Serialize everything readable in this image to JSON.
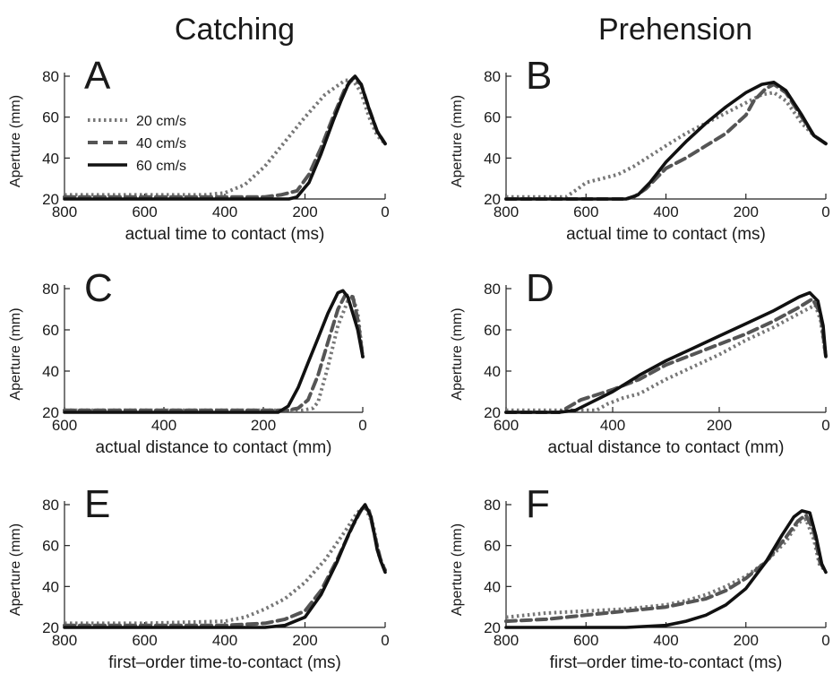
{
  "columns": [
    "Catching",
    "Prehension"
  ],
  "chart_data": [
    {
      "panel": "A",
      "type": "line",
      "xlabel": "actual time to contact (ms)",
      "ylabel": "Aperture (mm)",
      "xlim": [
        800,
        0
      ],
      "ylim": [
        20,
        80
      ],
      "xticks": [
        800,
        600,
        400,
        200,
        0
      ],
      "yticks": [
        20,
        40,
        60,
        80
      ],
      "legend": {
        "position": "top-left"
      },
      "series": [
        {
          "name": "20 cm/s",
          "style": "dotted",
          "color": "#777777",
          "x": [
            800,
            600,
            450,
            400,
            350,
            300,
            250,
            200,
            150,
            100,
            80,
            60,
            40,
            20,
            0
          ],
          "y": [
            22,
            22,
            22,
            23,
            27,
            36,
            48,
            60,
            71,
            78,
            78,
            72,
            60,
            51,
            47
          ]
        },
        {
          "name": "40 cm/s",
          "style": "dashed",
          "color": "#555555",
          "x": [
            800,
            600,
            400,
            300,
            260,
            220,
            190,
            160,
            130,
            100,
            80,
            60,
            40,
            20,
            0
          ],
          "y": [
            21,
            21,
            21,
            21,
            22,
            24,
            32,
            45,
            60,
            74,
            79,
            76,
            64,
            53,
            47
          ]
        },
        {
          "name": "60 cm/s",
          "style": "solid",
          "color": "#111111",
          "x": [
            800,
            600,
            400,
            300,
            240,
            220,
            190,
            160,
            130,
            110,
            90,
            75,
            60,
            40,
            20,
            0
          ],
          "y": [
            20,
            20,
            20,
            20,
            20,
            21,
            28,
            42,
            58,
            68,
            77,
            80,
            76,
            64,
            53,
            47
          ]
        }
      ]
    },
    {
      "panel": "B",
      "type": "line",
      "xlabel": "actual time to contact (ms)",
      "ylabel": "Aperture (mm)",
      "xlim": [
        800,
        0
      ],
      "ylim": [
        20,
        80
      ],
      "xticks": [
        800,
        600,
        400,
        200,
        0
      ],
      "yticks": [
        20,
        40,
        60,
        80
      ],
      "series": [
        {
          "name": "20 cm/s",
          "style": "dotted",
          "color": "#777777",
          "x": [
            800,
            650,
            620,
            600,
            560,
            520,
            480,
            440,
            400,
            350,
            300,
            250,
            200,
            160,
            130,
            100,
            60,
            30,
            0
          ],
          "y": [
            21,
            21,
            25,
            28,
            30,
            32,
            36,
            41,
            46,
            52,
            57,
            62,
            67,
            71,
            72,
            68,
            57,
            51,
            47
          ]
        },
        {
          "name": "40 cm/s",
          "style": "dashed",
          "color": "#555555",
          "x": [
            800,
            600,
            500,
            480,
            450,
            420,
            400,
            350,
            300,
            250,
            200,
            180,
            150,
            130,
            100,
            60,
            30,
            0
          ],
          "y": [
            20,
            20,
            20,
            21,
            25,
            31,
            35,
            40,
            46,
            52,
            61,
            68,
            74,
            76,
            72,
            60,
            51,
            47
          ]
        },
        {
          "name": "60 cm/s",
          "style": "solid",
          "color": "#111111",
          "x": [
            800,
            600,
            500,
            470,
            440,
            400,
            350,
            300,
            250,
            200,
            160,
            130,
            100,
            60,
            30,
            0
          ],
          "y": [
            20,
            20,
            20,
            22,
            28,
            38,
            48,
            57,
            65,
            72,
            76,
            77,
            73,
            61,
            51,
            47
          ]
        }
      ]
    },
    {
      "panel": "C",
      "type": "line",
      "xlabel": "actual distance to contact (mm)",
      "ylabel": "Aperture (mm)",
      "xlim": [
        600,
        0
      ],
      "ylim": [
        20,
        80
      ],
      "xticks": [
        600,
        400,
        200,
        0
      ],
      "yticks": [
        20,
        40,
        60,
        80
      ],
      "series": [
        {
          "name": "20 cm/s",
          "style": "dotted",
          "color": "#777777",
          "x": [
            600,
            400,
            200,
            120,
            100,
            90,
            70,
            50,
            30,
            20,
            10,
            0
          ],
          "y": [
            21,
            21,
            21,
            21,
            22,
            25,
            42,
            62,
            74,
            76,
            68,
            47
          ]
        },
        {
          "name": "40 cm/s",
          "style": "dashed",
          "color": "#555555",
          "x": [
            600,
            400,
            200,
            150,
            130,
            110,
            90,
            70,
            50,
            35,
            20,
            10,
            0
          ],
          "y": [
            21,
            21,
            21,
            21,
            22,
            26,
            38,
            54,
            70,
            77,
            76,
            65,
            47
          ]
        },
        {
          "name": "60 cm/s",
          "style": "solid",
          "color": "#111111",
          "x": [
            600,
            400,
            200,
            170,
            150,
            130,
            110,
            90,
            70,
            50,
            40,
            30,
            20,
            10,
            0
          ],
          "y": [
            20,
            20,
            20,
            20,
            23,
            32,
            44,
            56,
            68,
            78,
            79,
            76,
            68,
            60,
            47
          ]
        }
      ]
    },
    {
      "panel": "D",
      "type": "line",
      "xlabel": "actual distance to contact (mm)",
      "ylabel": "Aperture (mm)",
      "xlim": [
        600,
        0
      ],
      "ylim": [
        20,
        80
      ],
      "xticks": [
        600,
        400,
        200,
        0
      ],
      "yticks": [
        20,
        40,
        60,
        80
      ],
      "series": [
        {
          "name": "20 cm/s",
          "style": "dotted",
          "color": "#777777",
          "x": [
            600,
            430,
            410,
            380,
            350,
            300,
            250,
            200,
            150,
            100,
            50,
            20,
            10,
            0
          ],
          "y": [
            21,
            21,
            24,
            27,
            29,
            36,
            42,
            48,
            55,
            61,
            68,
            72,
            65,
            47
          ]
        },
        {
          "name": "40 cm/s",
          "style": "dashed",
          "color": "#555555",
          "x": [
            600,
            500,
            460,
            400,
            350,
            300,
            250,
            200,
            150,
            100,
            50,
            25,
            10,
            0
          ],
          "y": [
            20,
            20,
            26,
            31,
            36,
            43,
            48,
            53,
            58,
            64,
            71,
            75,
            68,
            47
          ]
        },
        {
          "name": "60 cm/s",
          "style": "solid",
          "color": "#111111",
          "x": [
            600,
            500,
            470,
            400,
            350,
            300,
            250,
            200,
            150,
            100,
            50,
            30,
            15,
            5,
            0
          ],
          "y": [
            20,
            20,
            21,
            30,
            38,
            45,
            51,
            57,
            63,
            69,
            76,
            78,
            74,
            62,
            47
          ]
        }
      ]
    },
    {
      "panel": "E",
      "type": "line",
      "xlabel": "first–order time-to-contact (ms)",
      "ylabel": "Aperture (mm)",
      "xlim": [
        800,
        0
      ],
      "ylim": [
        20,
        80
      ],
      "xticks": [
        800,
        600,
        400,
        200,
        0
      ],
      "yticks": [
        20,
        40,
        60,
        80
      ],
      "series": [
        {
          "name": "20 cm/s",
          "style": "dotted",
          "color": "#777777",
          "x": [
            800,
            600,
            400,
            350,
            300,
            250,
            200,
            150,
            100,
            70,
            50,
            30,
            15,
            0
          ],
          "y": [
            22,
            22,
            23,
            25,
            29,
            34,
            42,
            53,
            67,
            76,
            79,
            70,
            55,
            48
          ]
        },
        {
          "name": "40 cm/s",
          "style": "dashed",
          "color": "#555555",
          "x": [
            800,
            600,
            400,
            300,
            250,
            200,
            160,
            120,
            80,
            55,
            40,
            25,
            10,
            0
          ],
          "y": [
            21,
            21,
            21,
            22,
            24,
            28,
            38,
            53,
            70,
            79,
            77,
            64,
            52,
            48
          ]
        },
        {
          "name": "60 cm/s",
          "style": "solid",
          "color": "#111111",
          "x": [
            800,
            600,
            400,
            300,
            250,
            200,
            160,
            120,
            90,
            65,
            50,
            35,
            20,
            10,
            0
          ],
          "y": [
            20,
            20,
            20,
            20,
            21,
            25,
            36,
            52,
            66,
            76,
            80,
            74,
            58,
            52,
            47
          ]
        }
      ]
    },
    {
      "panel": "F",
      "type": "line",
      "xlabel": "first–order time-to-contact (ms)",
      "ylabel": "Aperture (mm)",
      "xlim": [
        800,
        0
      ],
      "ylim": [
        20,
        80
      ],
      "xticks": [
        800,
        600,
        400,
        200,
        0
      ],
      "yticks": [
        20,
        40,
        60,
        80
      ],
      "series": [
        {
          "name": "20 cm/s",
          "style": "dotted",
          "color": "#777777",
          "x": [
            800,
            700,
            600,
            500,
            400,
            350,
            300,
            250,
            200,
            150,
            100,
            70,
            50,
            30,
            15,
            0
          ],
          "y": [
            25,
            27,
            28,
            29,
            31,
            33,
            36,
            40,
            45,
            52,
            62,
            71,
            73,
            63,
            50,
            48
          ]
        },
        {
          "name": "40 cm/s",
          "style": "dashed",
          "color": "#555555",
          "x": [
            800,
            700,
            600,
            500,
            400,
            300,
            250,
            200,
            150,
            100,
            70,
            50,
            30,
            15,
            0
          ],
          "y": [
            23,
            24,
            26,
            28,
            30,
            34,
            38,
            44,
            52,
            64,
            72,
            75,
            67,
            52,
            47
          ]
        },
        {
          "name": "60 cm/s",
          "style": "solid",
          "color": "#111111",
          "x": [
            800,
            700,
            600,
            500,
            400,
            350,
            300,
            250,
            200,
            150,
            110,
            80,
            60,
            40,
            25,
            10,
            0
          ],
          "y": [
            20,
            20,
            20,
            20,
            21,
            23,
            26,
            31,
            39,
            52,
            65,
            74,
            77,
            76,
            65,
            51,
            47
          ]
        }
      ]
    }
  ]
}
